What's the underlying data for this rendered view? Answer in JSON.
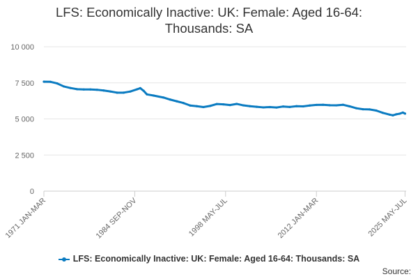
{
  "chart_data": {
    "type": "line",
    "title": "LFS: Economically Inactive: UK: Female: Aged 16-64:\nThousands: SA",
    "xlabel": "",
    "ylabel": "",
    "ylim": [
      0,
      10000
    ],
    "y_ticks": [
      {
        "value": 0,
        "label": "0"
      },
      {
        "value": 2500,
        "label": "2 500"
      },
      {
        "value": 5000,
        "label": "5 000"
      },
      {
        "value": 7500,
        "label": "7 500"
      },
      {
        "value": 10000,
        "label": "10 000"
      }
    ],
    "x_ticks": [
      {
        "value": 1971.0,
        "label": "1971 JAN-MAR"
      },
      {
        "value": 1984.67,
        "label": "1984 SEP-NOV"
      },
      {
        "value": 1998.33,
        "label": "1998 MAY-JUL"
      },
      {
        "value": 2012.0,
        "label": "2012 JAN-MAR"
      },
      {
        "value": 2025.33,
        "label": "2025 MAY-JUL"
      }
    ],
    "xlim": [
      1971.0,
      2025.5
    ],
    "grid": true,
    "legend_position": "bottom",
    "series": [
      {
        "name": "LFS: Economically Inactive: UK: Female: Aged 16-64: Thousands: SA",
        "color": "#0a7bc1",
        "points": [
          [
            1971.0,
            7580
          ],
          [
            1972.0,
            7570
          ],
          [
            1973.0,
            7460
          ],
          [
            1974.0,
            7250
          ],
          [
            1975.0,
            7140
          ],
          [
            1976.0,
            7060
          ],
          [
            1977.0,
            7040
          ],
          [
            1978.0,
            7040
          ],
          [
            1979.0,
            7020
          ],
          [
            1980.0,
            6970
          ],
          [
            1981.0,
            6900
          ],
          [
            1982.0,
            6820
          ],
          [
            1983.0,
            6820
          ],
          [
            1984.0,
            6900
          ],
          [
            1985.0,
            7050
          ],
          [
            1985.5,
            7130
          ],
          [
            1986.0,
            6950
          ],
          [
            1986.5,
            6700
          ],
          [
            1987.5,
            6620
          ],
          [
            1989.0,
            6480
          ],
          [
            1990.0,
            6340
          ],
          [
            1991.0,
            6220
          ],
          [
            1992.0,
            6100
          ],
          [
            1993.0,
            5930
          ],
          [
            1994.0,
            5880
          ],
          [
            1995.0,
            5820
          ],
          [
            1996.0,
            5900
          ],
          [
            1997.0,
            6030
          ],
          [
            1998.0,
            6010
          ],
          [
            1999.0,
            5960
          ],
          [
            2000.0,
            6040
          ],
          [
            2001.0,
            5940
          ],
          [
            2002.0,
            5880
          ],
          [
            2003.0,
            5840
          ],
          [
            2004.0,
            5800
          ],
          [
            2005.0,
            5820
          ],
          [
            2006.0,
            5790
          ],
          [
            2007.0,
            5860
          ],
          [
            2008.0,
            5830
          ],
          [
            2009.0,
            5880
          ],
          [
            2010.0,
            5870
          ],
          [
            2011.0,
            5930
          ],
          [
            2012.0,
            5970
          ],
          [
            2013.0,
            5980
          ],
          [
            2014.0,
            5950
          ],
          [
            2015.0,
            5940
          ],
          [
            2016.0,
            5980
          ],
          [
            2017.0,
            5870
          ],
          [
            2018.0,
            5740
          ],
          [
            2019.0,
            5670
          ],
          [
            2020.0,
            5660
          ],
          [
            2021.0,
            5580
          ],
          [
            2022.0,
            5420
          ],
          [
            2023.0,
            5300
          ],
          [
            2023.5,
            5250
          ],
          [
            2024.0,
            5320
          ],
          [
            2024.5,
            5360
          ],
          [
            2025.0,
            5440
          ],
          [
            2025.33,
            5370
          ]
        ]
      }
    ],
    "source_label": "Source:"
  }
}
